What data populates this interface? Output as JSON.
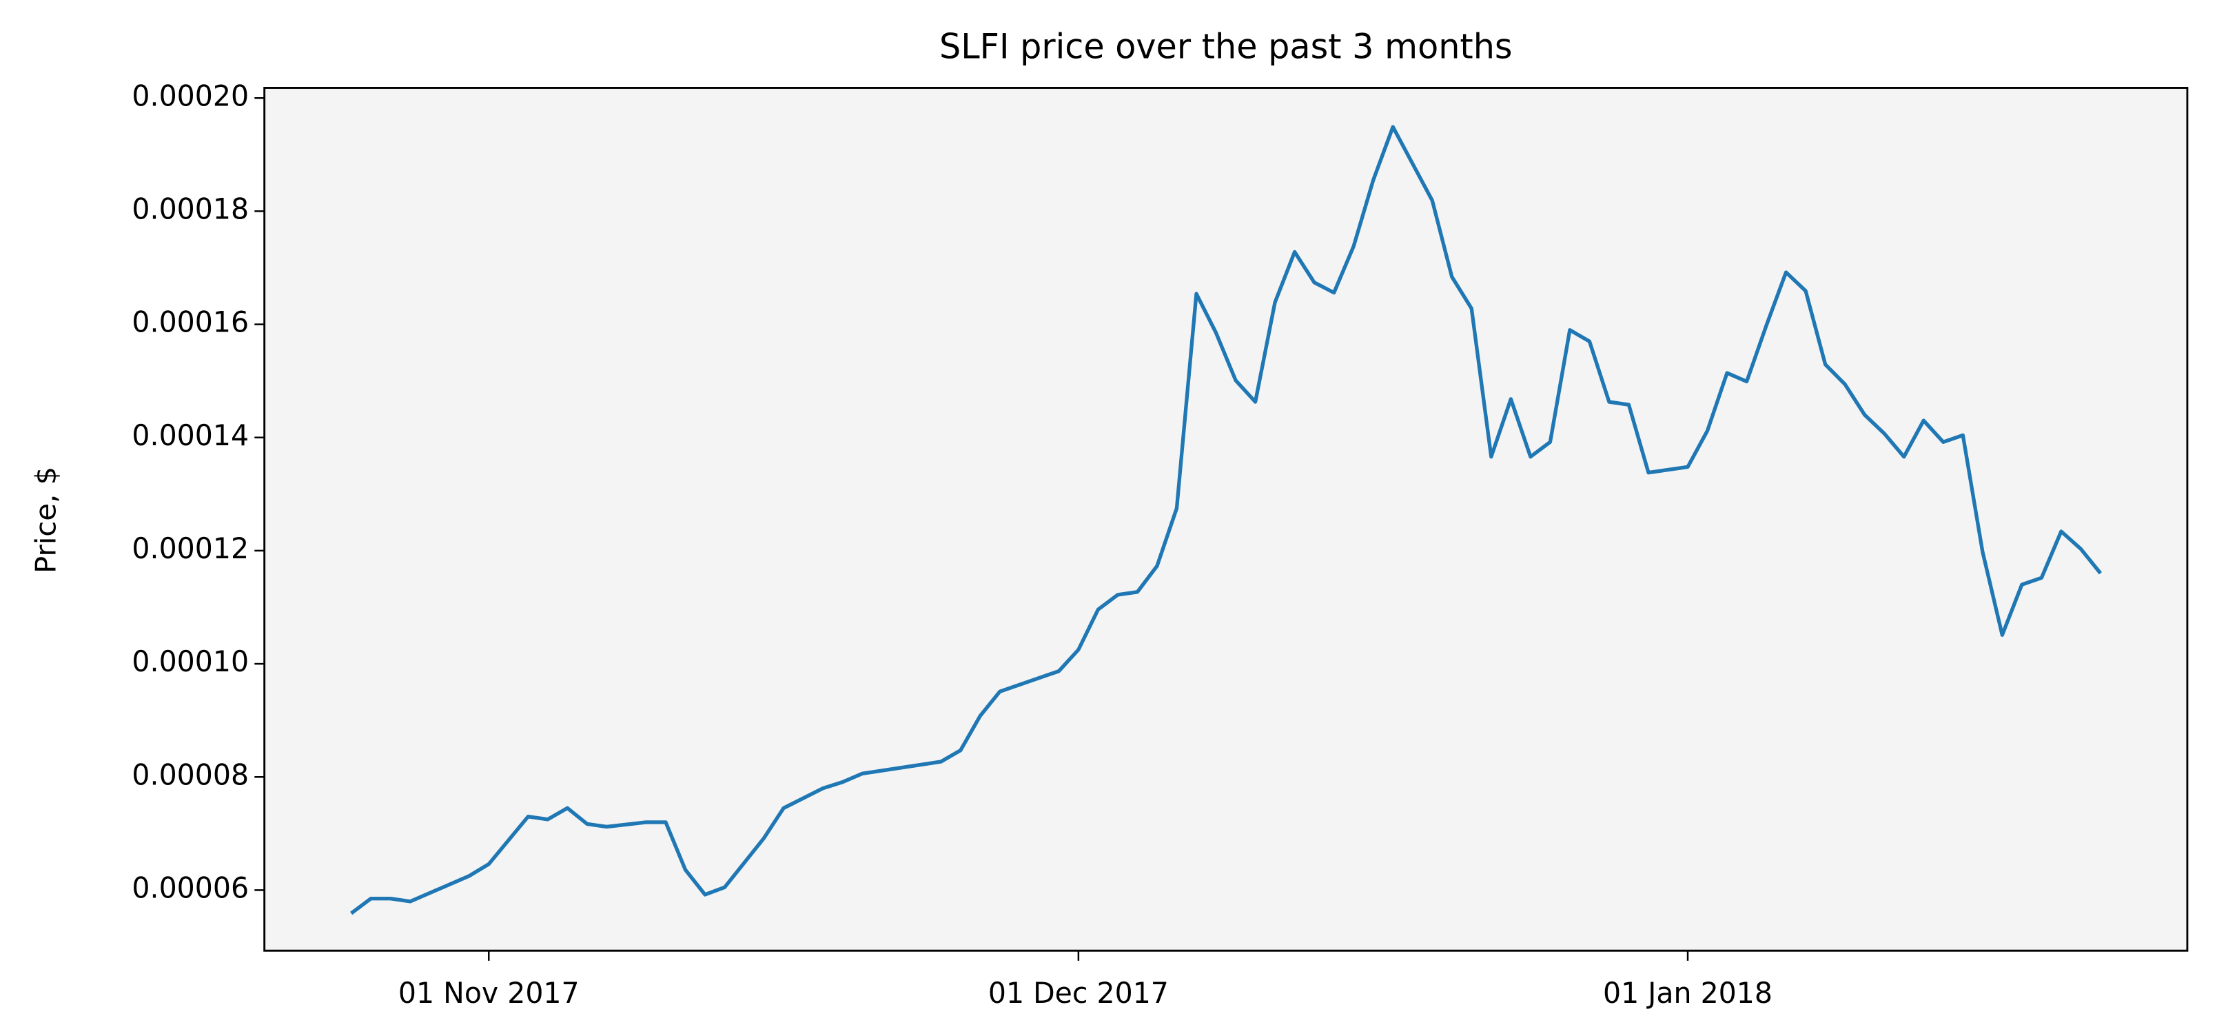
{
  "chart_data": {
    "type": "line",
    "title": "SLFI price over the past 3 months",
    "y_label": "Price, $",
    "x": [
      "2017-10-25",
      "2017-10-26",
      "2017-10-27",
      "2017-10-28",
      "2017-10-31",
      "2017-11-01",
      "2017-11-03",
      "2017-11-04",
      "2017-11-05",
      "2017-11-06",
      "2017-11-07",
      "2017-11-09",
      "2017-11-10",
      "2017-11-11",
      "2017-11-12",
      "2017-11-13",
      "2017-11-15",
      "2017-11-16",
      "2017-11-18",
      "2017-11-19",
      "2017-11-20",
      "2017-11-24",
      "2017-11-25",
      "2017-11-26",
      "2017-11-27",
      "2017-11-30",
      "2017-12-01",
      "2017-12-02",
      "2017-12-03",
      "2017-12-04",
      "2017-12-05",
      "2017-12-06",
      "2017-12-07",
      "2017-12-08",
      "2017-12-09",
      "2017-12-10",
      "2017-12-11",
      "2017-12-12",
      "2017-12-13",
      "2017-12-14",
      "2017-12-15",
      "2017-12-16",
      "2017-12-17",
      "2017-12-19",
      "2017-12-20",
      "2017-12-21",
      "2017-12-22",
      "2017-12-23",
      "2017-12-24",
      "2017-12-25",
      "2017-12-26",
      "2017-12-27",
      "2017-12-28",
      "2017-12-29",
      "2017-12-30",
      "2018-01-01",
      "2018-01-02",
      "2018-01-03",
      "2018-01-04",
      "2018-01-05",
      "2018-01-06",
      "2018-01-07",
      "2018-01-08",
      "2018-01-09",
      "2018-01-10",
      "2018-01-11",
      "2018-01-12",
      "2018-01-13",
      "2018-01-14",
      "2018-01-15",
      "2018-01-16",
      "2018-01-17",
      "2018-01-18",
      "2018-01-19",
      "2018-01-20",
      "2018-01-21",
      "2018-01-22"
    ],
    "series": [
      {
        "name": "SLFI",
        "color": "#1f77b4",
        "values": [
          5.59e-05,
          5.85e-05,
          5.85e-05,
          5.8e-05,
          6.25e-05,
          6.46e-05,
          7.3e-05,
          7.25e-05,
          7.45e-05,
          7.17e-05,
          7.12e-05,
          7.2e-05,
          7.2e-05,
          6.36e-05,
          5.92e-05,
          6.05e-05,
          6.92e-05,
          7.45e-05,
          7.8e-05,
          7.91e-05,
          8.06e-05,
          8.27e-05,
          8.47e-05,
          9.08e-05,
          9.51e-05,
          9.87e-05,
          0.0001025,
          0.0001096,
          0.0001122,
          0.0001127,
          0.0001173,
          0.0001275,
          0.0001654,
          0.0001585,
          0.0001501,
          0.0001463,
          0.0001639,
          0.0001728,
          0.0001674,
          0.0001656,
          0.0001738,
          0.0001855,
          0.0001949,
          0.0001819,
          0.0001684,
          0.0001628,
          0.0001366,
          0.0001468,
          0.0001366,
          0.0001392,
          0.000159,
          0.000157,
          0.0001463,
          0.0001458,
          0.0001338,
          0.0001348,
          0.0001412,
          0.0001514,
          0.0001499,
          0.0001598,
          0.0001692,
          0.0001659,
          0.0001529,
          0.0001494,
          0.000144,
          0.0001407,
          0.0001366,
          0.000143,
          0.0001392,
          0.0001404,
          0.0001198,
          0.0001051,
          0.000114,
          0.0001152,
          0.0001234,
          0.0001203,
          0.000116
        ]
      }
    ],
    "xlim": [
      "2017-10-20T14:00",
      "2018-01-26T10:00"
    ],
    "xticks": [
      {
        "value": "2017-11-01",
        "label": "01 Nov 2017"
      },
      {
        "value": "2017-12-01",
        "label": "01 Dec 2017"
      },
      {
        "value": "2018-01-01",
        "label": "01 Jan 2018"
      }
    ],
    "ylim": [
      4.93e-05,
      0.0002018
    ],
    "yticks": [
      6e-05,
      8e-05,
      {
        "value": 0.0001,
        "label": "0.00010"
      },
      0.00012,
      0.00014,
      0.00016,
      0.00018,
      {
        "value": 0.0002,
        "label": "0.00020"
      }
    ],
    "background": "#f4f4f4",
    "grid": false
  }
}
